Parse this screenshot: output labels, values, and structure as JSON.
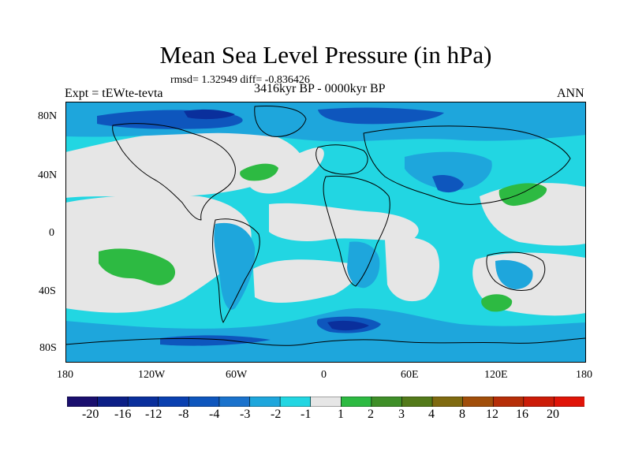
{
  "title": "Mean Sea Level Pressure (in hPa)",
  "stats": "rmsd= 1.32949 diff= -0.836426",
  "experiment": "Expt = tEWte-tevta",
  "period": "3416kyr BP - 0000kyr BP",
  "season": "ANN",
  "lat_labels": [
    "80N",
    "40N",
    "0",
    "40S",
    "80S"
  ],
  "lon_labels": [
    "180",
    "120W",
    "60W",
    "0",
    "60E",
    "120E",
    "180"
  ],
  "colorbar": {
    "labels": [
      "-20",
      "-16",
      "-12",
      "-8",
      "-4",
      "-3",
      "-2",
      "-1",
      "1",
      "2",
      "3",
      "4",
      "8",
      "12",
      "16",
      "20"
    ],
    "colors": [
      "#1a0f6e",
      "#0c1f86",
      "#0a2f9c",
      "#0a40b0",
      "#0e56bd",
      "#1a72cc",
      "#1ea6dc",
      "#22d6e2",
      "#e6e6e6",
      "#2dba42",
      "#3f8f28",
      "#537a1a",
      "#7f6a10",
      "#a14e0a",
      "#b62e07",
      "#cc1c08",
      "#e01408"
    ]
  },
  "colors": {
    "ocean_base": "#22d6e2",
    "near_zero": "#e6e6e6",
    "mid_blue": "#1ea6dc",
    "deep_blue": "#0e56bd",
    "darkest_blue": "#0a2f9c",
    "green": "#2dba42",
    "coast": "#000000"
  }
}
